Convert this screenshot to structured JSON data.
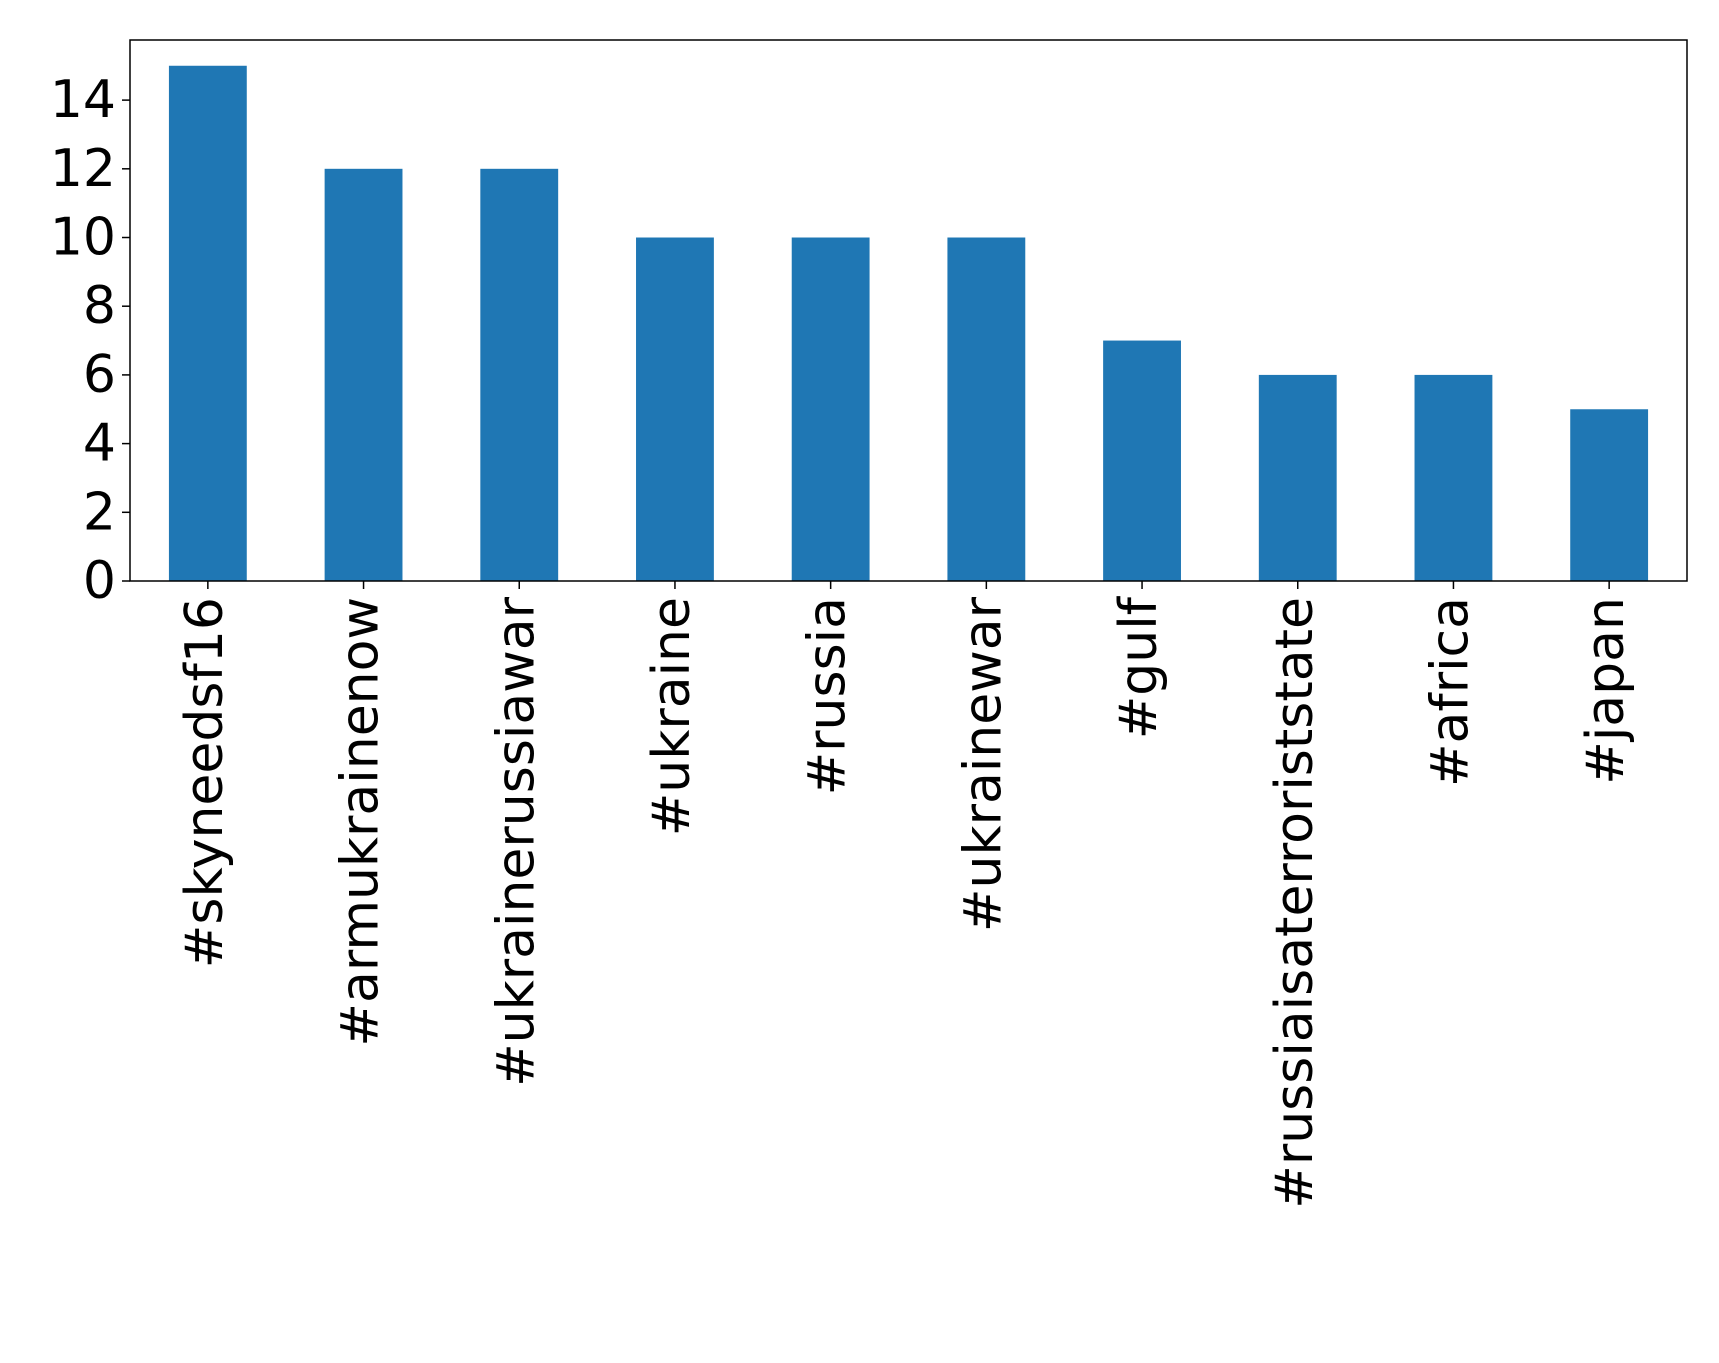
{
  "chart_data": {
    "type": "bar",
    "categories": [
      "#skyneedsf16",
      "#armukrainenow",
      "#ukrainerussiawar",
      "#ukraine",
      "#russia",
      "#ukrainewar",
      "#gulf",
      "#russiaisaterroriststate",
      "#africa",
      "#japan"
    ],
    "values": [
      15,
      12,
      12,
      10,
      10,
      10,
      7,
      6,
      6,
      5
    ],
    "color": "#1f77b4",
    "ylim": [
      0,
      15.75
    ],
    "yticks": [
      0,
      2,
      4,
      6,
      8,
      10,
      12,
      14
    ],
    "grid": false
  }
}
